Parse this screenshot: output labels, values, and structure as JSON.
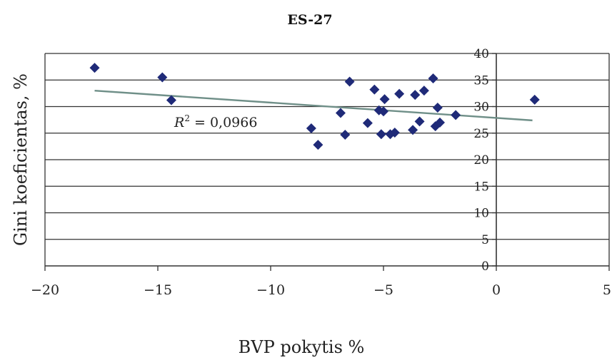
{
  "chart_data": {
    "type": "scatter",
    "title": "ES-27",
    "xlabel": "BVP pokytis %",
    "ylabel": "Gini koeficientas, %",
    "xlim": [
      -20,
      5
    ],
    "ylim": [
      0,
      40
    ],
    "x_ticks": [
      -20,
      -15,
      -10,
      -5,
      0,
      5
    ],
    "x_tick_labels": [
      "−20",
      "−15",
      "−10",
      "−5",
      "0",
      "5"
    ],
    "y_ticks": [
      0,
      5,
      10,
      15,
      20,
      25,
      30,
      35,
      40
    ],
    "y_tick_labels": [
      "0",
      "5",
      "10",
      "15",
      "20",
      "25",
      "30",
      "35",
      "40"
    ],
    "grid": "horizontal",
    "colors": {
      "points": "#1f2a78",
      "trendline": "#6f8f88",
      "grid": "#333333"
    },
    "series": [
      {
        "marker": "diamond",
        "points": [
          {
            "x": -17.8,
            "y": 37.3
          },
          {
            "x": -14.8,
            "y": 35.5
          },
          {
            "x": -14.4,
            "y": 31.2
          },
          {
            "x": -8.2,
            "y": 25.9
          },
          {
            "x": -7.9,
            "y": 22.8
          },
          {
            "x": -6.9,
            "y": 28.8
          },
          {
            "x": -6.7,
            "y": 24.7
          },
          {
            "x": -6.5,
            "y": 34.7
          },
          {
            "x": -5.7,
            "y": 26.9
          },
          {
            "x": -5.4,
            "y": 33.2
          },
          {
            "x": -5.2,
            "y": 29.3
          },
          {
            "x": -5.1,
            "y": 24.8
          },
          {
            "x": -5.0,
            "y": 29.1
          },
          {
            "x": -4.95,
            "y": 31.4
          },
          {
            "x": -4.7,
            "y": 24.8
          },
          {
            "x": -4.5,
            "y": 25.1
          },
          {
            "x": -4.3,
            "y": 32.4
          },
          {
            "x": -3.7,
            "y": 25.6
          },
          {
            "x": -3.6,
            "y": 32.2
          },
          {
            "x": -3.4,
            "y": 27.2
          },
          {
            "x": -3.2,
            "y": 33.0
          },
          {
            "x": -2.8,
            "y": 35.3
          },
          {
            "x": -2.7,
            "y": 26.3
          },
          {
            "x": -2.6,
            "y": 29.8
          },
          {
            "x": -2.5,
            "y": 27.0
          },
          {
            "x": -1.8,
            "y": 28.4
          },
          {
            "x": 1.7,
            "y": 31.3
          }
        ]
      }
    ],
    "trendline": {
      "type": "linear",
      "x_start": -17.8,
      "y_start": 33.0,
      "x_end": 1.6,
      "y_end": 27.4,
      "label_prefix": "R",
      "label_sup": "2",
      "label_value": " = 0,0966"
    }
  }
}
